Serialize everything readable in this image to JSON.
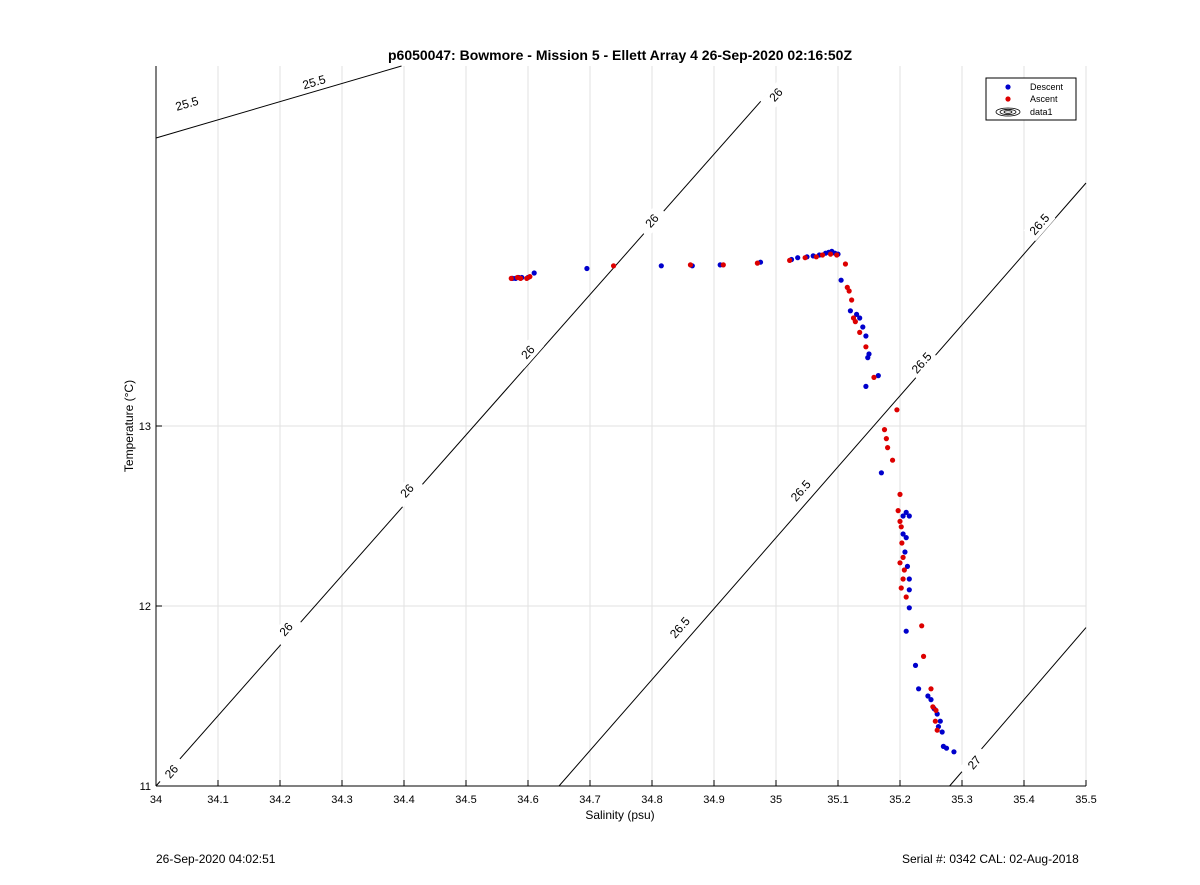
{
  "chart_data": {
    "type": "scatter",
    "title": "p6050047: Bowmore - Mission 5 - Ellett Array 4 26-Sep-2020 02:16:50Z",
    "xlabel": "Salinity (psu)",
    "ylabel": "Temperature (°C)",
    "xlim": [
      34,
      35.5
    ],
    "ylim": [
      11,
      15
    ],
    "xticks": [
      34,
      34.1,
      34.2,
      34.3,
      34.4,
      34.5,
      34.6,
      34.7,
      34.8,
      34.9,
      35,
      35.1,
      35.2,
      35.3,
      35.4,
      35.5
    ],
    "xtick_labels": [
      "34",
      "34.1",
      "34.2",
      "34.3",
      "34.4",
      "34.5",
      "34.6",
      "34.7",
      "34.8",
      "34.9",
      "35",
      "35.1",
      "35.2",
      "35.3",
      "35.4",
      "35.5"
    ],
    "yticks": [
      11,
      12,
      13
    ],
    "ytick_labels": [
      "11",
      "12",
      "13"
    ],
    "grid": true,
    "legend_position": "top-right",
    "legend": [
      "Descent",
      "Ascent",
      "data1"
    ],
    "colors": {
      "descent": "#0000cc",
      "ascent": "#dd0000",
      "contour": "#000000"
    },
    "contours": [
      {
        "level": "25.5",
        "points": [
          [
            34.0,
            14.6
          ],
          [
            34.396,
            15.0
          ]
        ],
        "labels": [
          {
            "text": "25.5",
            "x": 34.05,
            "y": 14.79
          },
          {
            "text": "25.5",
            "x": 34.255,
            "y": 14.91
          }
        ]
      },
      {
        "level": "26",
        "points": [
          [
            34.0,
            11.0
          ],
          [
            35.0,
            14.9
          ]
        ],
        "labels": [
          {
            "text": "26",
            "x": 34.025,
            "y": 11.08
          },
          {
            "text": "26",
            "x": 34.21,
            "y": 11.87
          },
          {
            "text": "26",
            "x": 34.405,
            "y": 12.64
          },
          {
            "text": "26",
            "x": 34.6,
            "y": 13.41
          },
          {
            "text": "26",
            "x": 34.8,
            "y": 14.14
          },
          {
            "text": "26",
            "x": 35.0,
            "y": 14.84
          }
        ]
      },
      {
        "level": "26.5",
        "points": [
          [
            34.65,
            11.0
          ],
          [
            35.5,
            14.35
          ]
        ],
        "labels": [
          {
            "text": "26.5",
            "x": 34.845,
            "y": 11.88
          },
          {
            "text": "26.5",
            "x": 35.04,
            "y": 12.64
          },
          {
            "text": "26.5",
            "x": 35.235,
            "y": 13.35
          },
          {
            "text": "26.5",
            "x": 35.425,
            "y": 14.12
          }
        ]
      },
      {
        "level": "27",
        "points": [
          [
            35.28,
            11.0
          ],
          [
            35.5,
            11.88
          ]
        ],
        "labels": [
          {
            "text": "27",
            "x": 35.32,
            "y": 11.13
          }
        ]
      }
    ],
    "series": [
      {
        "name": "Descent",
        "points": [
          [
            34.575,
            13.82
          ],
          [
            34.58,
            13.82
          ],
          [
            34.585,
            13.825
          ],
          [
            34.59,
            13.825
          ],
          [
            34.6,
            13.825
          ],
          [
            34.61,
            13.85
          ],
          [
            34.695,
            13.875
          ],
          [
            34.815,
            13.89
          ],
          [
            34.865,
            13.89
          ],
          [
            34.91,
            13.895
          ],
          [
            34.975,
            13.91
          ],
          [
            35.025,
            13.925
          ],
          [
            35.035,
            13.935
          ],
          [
            35.05,
            13.94
          ],
          [
            35.06,
            13.945
          ],
          [
            35.07,
            13.95
          ],
          [
            35.08,
            13.96
          ],
          [
            35.085,
            13.965
          ],
          [
            35.09,
            13.97
          ],
          [
            35.095,
            13.96
          ],
          [
            35.1,
            13.955
          ],
          [
            35.105,
            13.81
          ],
          [
            35.12,
            13.64
          ],
          [
            35.13,
            13.62
          ],
          [
            35.135,
            13.6
          ],
          [
            35.14,
            13.55
          ],
          [
            35.145,
            13.5
          ],
          [
            35.15,
            13.4
          ],
          [
            35.148,
            13.38
          ],
          [
            35.145,
            13.22
          ],
          [
            35.165,
            13.28
          ],
          [
            35.17,
            12.74
          ],
          [
            35.205,
            12.5
          ],
          [
            35.21,
            12.52
          ],
          [
            35.215,
            12.5
          ],
          [
            35.205,
            12.4
          ],
          [
            35.21,
            12.38
          ],
          [
            35.208,
            12.3
          ],
          [
            35.212,
            12.22
          ],
          [
            35.215,
            12.15
          ],
          [
            35.215,
            12.09
          ],
          [
            35.215,
            11.99
          ],
          [
            35.21,
            11.86
          ],
          [
            35.225,
            11.67
          ],
          [
            35.23,
            11.54
          ],
          [
            35.245,
            11.5
          ],
          [
            35.25,
            11.48
          ],
          [
            35.255,
            11.43
          ],
          [
            35.26,
            11.4
          ],
          [
            35.262,
            11.33
          ],
          [
            35.265,
            11.36
          ],
          [
            35.268,
            11.3
          ],
          [
            35.27,
            11.22
          ],
          [
            35.275,
            11.21
          ],
          [
            35.287,
            11.19
          ]
        ]
      },
      {
        "name": "Ascent",
        "points": [
          [
            34.573,
            13.82
          ],
          [
            34.583,
            13.825
          ],
          [
            34.588,
            13.82
          ],
          [
            34.598,
            13.82
          ],
          [
            34.603,
            13.83
          ],
          [
            34.738,
            13.89
          ],
          [
            34.862,
            13.895
          ],
          [
            34.915,
            13.895
          ],
          [
            34.97,
            13.905
          ],
          [
            35.022,
            13.92
          ],
          [
            35.047,
            13.935
          ],
          [
            35.065,
            13.94
          ],
          [
            35.075,
            13.95
          ],
          [
            35.088,
            13.955
          ],
          [
            35.098,
            13.95
          ],
          [
            35.112,
            13.9
          ],
          [
            35.115,
            13.77
          ],
          [
            35.118,
            13.75
          ],
          [
            35.122,
            13.7
          ],
          [
            35.125,
            13.6
          ],
          [
            35.128,
            13.58
          ],
          [
            35.135,
            13.52
          ],
          [
            35.145,
            13.44
          ],
          [
            35.158,
            13.27
          ],
          [
            35.195,
            13.09
          ],
          [
            35.175,
            12.98
          ],
          [
            35.178,
            12.93
          ],
          [
            35.18,
            12.88
          ],
          [
            35.188,
            12.81
          ],
          [
            35.2,
            12.62
          ],
          [
            35.197,
            12.53
          ],
          [
            35.2,
            12.47
          ],
          [
            35.202,
            12.44
          ],
          [
            35.203,
            12.35
          ],
          [
            35.2,
            12.24
          ],
          [
            35.205,
            12.27
          ],
          [
            35.207,
            12.2
          ],
          [
            35.205,
            12.15
          ],
          [
            35.21,
            12.05
          ],
          [
            35.202,
            12.1
          ],
          [
            35.235,
            11.89
          ],
          [
            35.238,
            11.72
          ],
          [
            35.25,
            11.54
          ],
          [
            35.253,
            11.44
          ],
          [
            35.258,
            11.42
          ],
          [
            35.257,
            11.36
          ],
          [
            35.26,
            11.31
          ]
        ]
      }
    ]
  },
  "footer": {
    "timestamp": "26-Sep-2020 04:02:51",
    "serial": "Serial #: 0342  CAL: 02-Aug-2018"
  }
}
